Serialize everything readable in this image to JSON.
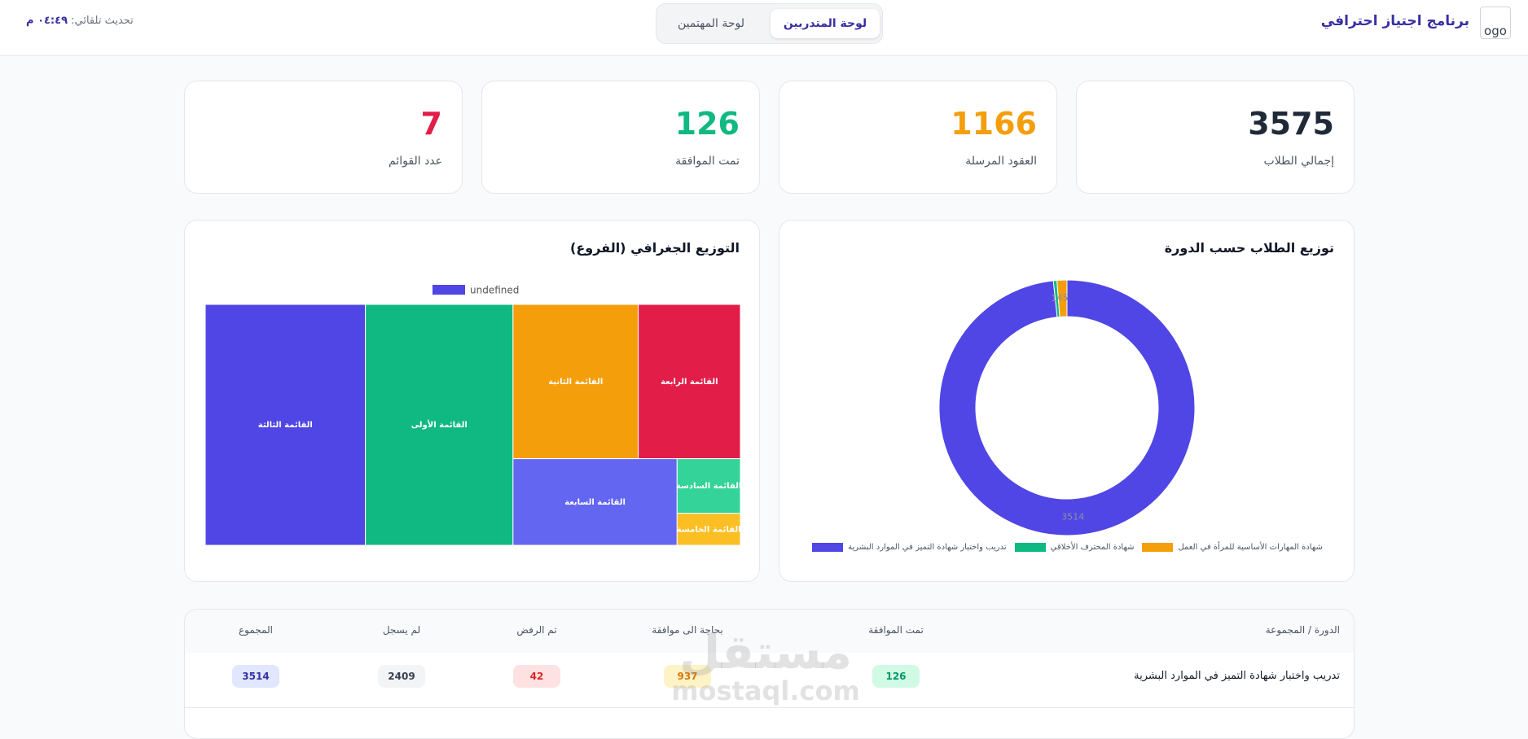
{
  "header": {
    "logo_alt": "ogo",
    "title": "برنامج اجتياز احترافي",
    "tabs": [
      "لوحة المتدربين",
      "لوحة المهتمين"
    ],
    "update_label": "تحديث تلقائي:",
    "update_time": "٠٤:٤٩ م"
  },
  "stats": [
    {
      "value": 3575,
      "label": "إجمالي الطلاب"
    },
    {
      "value": 1166,
      "label": "العقود المرسلة"
    },
    {
      "value": 126,
      "label": "تمت الموافقة"
    },
    {
      "value": 7,
      "label": "عدد القوائم"
    }
  ],
  "chart_data": [
    {
      "type": "doughnut",
      "title": "توزيع الطلاب حسب الدورة",
      "categories": [
        "تدريب واختبار شهادة التميز في الموارد البشرية",
        "شهادة المحترف الأخلاقي",
        "شهادة المهارات الأساسية للمرأة في العمل"
      ],
      "values": [
        3514,
        16,
        45
      ],
      "colors": [
        "#4f46e5",
        "#10b981",
        "#f59e0b"
      ]
    },
    {
      "type": "treemap",
      "title": "التوزيع الجغرافي (الفروع)",
      "legend": "undefined",
      "categories": [
        "القائمة الثالثة",
        "القائمة الأولى",
        "القائمة الثانية",
        "القائمة الرابعة",
        "القائمة السابعة",
        "القائمة السادسة",
        "القائمة الخامسة"
      ],
      "values": [
        1070,
        986,
        536,
        437,
        394,
        96,
        56
      ],
      "colors": [
        "#4f46e5",
        "#10b981",
        "#f59e0b",
        "#e11d48",
        "#6366f1",
        "#34d399",
        "#fbbf24"
      ]
    }
  ],
  "table": {
    "columns": [
      "الدورة / المجموعة",
      "تمت الموافقة",
      "بحاجة الى موافقة",
      "تم الرفض",
      "لم يسجل",
      "المجموع"
    ],
    "rows": [
      [
        "تدريب واختبار شهادة التميز في الموارد البشرية",
        126,
        937,
        42,
        2409,
        3514
      ]
    ]
  },
  "watermark": {
    "brand": "مستقل",
    "site": "mostaql.com"
  }
}
